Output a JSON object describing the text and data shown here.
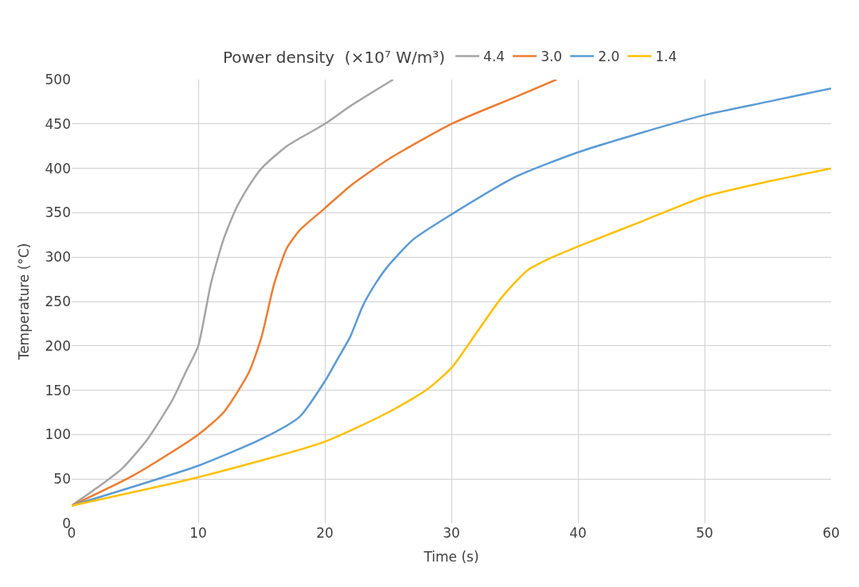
{
  "chart_data": {
    "type": "line",
    "xlabel": "Time (s)",
    "ylabel": "Temperature (°C)",
    "legend_title": "Power density  (×10⁷ W/m³)",
    "xlim": [
      0,
      60
    ],
    "xticks": [
      0,
      10,
      20,
      30,
      40,
      50,
      60
    ],
    "ylim": [
      0,
      500
    ],
    "yticks": [
      0,
      50,
      100,
      150,
      200,
      250,
      300,
      350,
      400,
      450,
      500
    ],
    "grid": true,
    "legend": "top",
    "marker": "none",
    "line_style": "solid",
    "series": [
      {
        "name": "4.4",
        "color": "#a5a5a5",
        "x": [
          0,
          2,
          4,
          6,
          8,
          9,
          10,
          11,
          12,
          13,
          14,
          15,
          17,
          20,
          22,
          25.4
        ],
        "values": [
          20,
          40,
          62,
          95,
          140,
          170,
          200,
          270,
          320,
          355,
          380,
          400,
          425,
          450,
          470,
          500
        ]
      },
      {
        "name": "3.0",
        "color": "#ed7d31",
        "x": [
          0,
          5,
          10,
          12,
          14,
          15,
          16,
          17,
          18,
          20,
          22,
          25,
          30,
          35,
          38.3
        ],
        "values": [
          20,
          55,
          100,
          125,
          170,
          210,
          270,
          310,
          330,
          355,
          380,
          410,
          450,
          480,
          500
        ]
      },
      {
        "name": "2.0",
        "color": "#5b9bd5",
        "x": [
          0,
          10,
          15,
          18,
          20,
          21,
          22,
          23,
          24,
          25,
          27,
          30,
          35,
          40,
          45,
          50,
          55,
          60
        ],
        "values": [
          20,
          65,
          95,
          120,
          160,
          185,
          210,
          245,
          270,
          290,
          320,
          348,
          390,
          418,
          440,
          460,
          475,
          490
        ]
      },
      {
        "name": "1.4",
        "color": "#ffc000",
        "x": [
          0,
          10,
          20,
          25,
          28,
          30,
          32,
          34,
          36,
          38,
          40,
          45,
          50,
          55,
          60
        ],
        "values": [
          20,
          52,
          92,
          125,
          150,
          175,
          215,
          255,
          285,
          300,
          312,
          340,
          368,
          385,
          400
        ]
      }
    ]
  }
}
